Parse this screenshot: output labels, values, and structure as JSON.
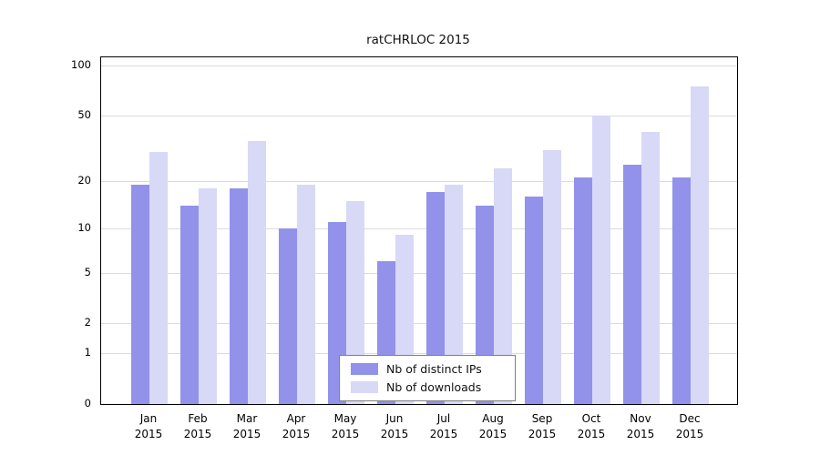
{
  "title": "ratCHRLOC 2015",
  "chart_data": {
    "type": "bar",
    "title": "ratCHRLOC 2015",
    "months": [
      "Jan",
      "Feb",
      "Mar",
      "Apr",
      "May",
      "Jun",
      "Jul",
      "Aug",
      "Sep",
      "Oct",
      "Nov",
      "Dec"
    ],
    "year": "2015",
    "x_categories": [
      "Jan 2015",
      "Feb 2015",
      "Mar 2015",
      "Apr 2015",
      "May 2015",
      "Jun 2015",
      "Jul 2015",
      "Aug 2015",
      "Sep 2015",
      "Oct 2015",
      "Nov 2015",
      "Dec 2015"
    ],
    "series": [
      {
        "name": "Nb of distinct IPs",
        "color": "#9292ea",
        "values": [
          19,
          14,
          18,
          10,
          11,
          6,
          17,
          14,
          16,
          21,
          25,
          21
        ]
      },
      {
        "name": "Nb of downloads",
        "color": "#d8d8f7",
        "values": [
          30,
          18,
          35,
          19,
          15,
          9,
          19,
          24,
          31,
          50,
          40,
          75
        ]
      }
    ],
    "y_axis": {
      "scale": "log1p",
      "ticks": [
        0,
        1,
        2,
        5,
        10,
        20,
        50,
        100
      ]
    },
    "ylim": [
      0,
      112
    ],
    "grid": true,
    "legend_position": "bottom-center",
    "colors": {
      "grid": "#dcdcdc",
      "axis_box": "#000000",
      "background": "#ffffff"
    }
  }
}
